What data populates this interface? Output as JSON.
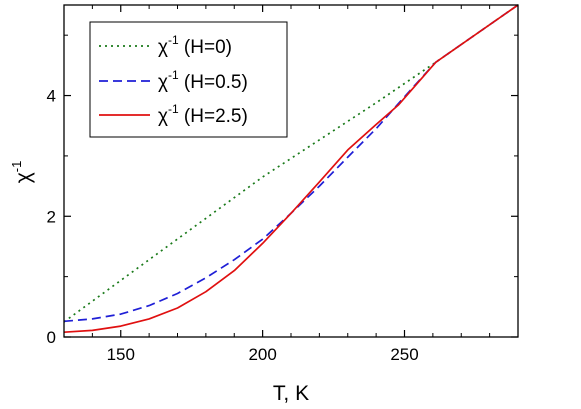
{
  "chart_data": {
    "type": "line",
    "xlabel": "T, K",
    "ylabel_base": "χ",
    "ylabel_exp": "-1",
    "xlim": [
      130,
      290
    ],
    "ylim": [
      0,
      5.5
    ],
    "xticks": [
      150,
      200,
      250
    ],
    "yticks": [
      0,
      2,
      4
    ],
    "legend_position": "top-left",
    "series": [
      {
        "name_base": "χ",
        "name_exp": "-1",
        "name_rest": "(H=0)",
        "color": "#1a7a1a",
        "dash": "dotted",
        "x": [
          130,
          160,
          200,
          240,
          261,
          290
        ],
        "y": [
          0.25,
          1.28,
          2.65,
          3.88,
          4.55,
          5.5
        ]
      },
      {
        "name_base": "χ",
        "name_exp": "-1",
        "name_rest": "(H=0.5)",
        "color": "#1f1fd6",
        "dash": "dashed",
        "x": [
          130,
          140,
          150,
          160,
          170,
          180,
          190,
          200,
          210,
          220,
          230,
          240,
          250,
          261,
          290
        ],
        "y": [
          0.26,
          0.3,
          0.38,
          0.52,
          0.72,
          0.98,
          1.28,
          1.62,
          2.05,
          2.5,
          2.98,
          3.45,
          3.98,
          4.55,
          5.5
        ]
      },
      {
        "name_base": "χ",
        "name_exp": "-1",
        "name_rest": "(H=2.5)",
        "color": "#e01010",
        "dash": "solid",
        "x": [
          130,
          140,
          150,
          160,
          170,
          180,
          190,
          200,
          210,
          220,
          230,
          240,
          248,
          261,
          290
        ],
        "y": [
          0.08,
          0.11,
          0.18,
          0.3,
          0.48,
          0.75,
          1.1,
          1.55,
          2.05,
          2.57,
          3.1,
          3.52,
          3.85,
          4.55,
          5.5
        ]
      }
    ]
  }
}
